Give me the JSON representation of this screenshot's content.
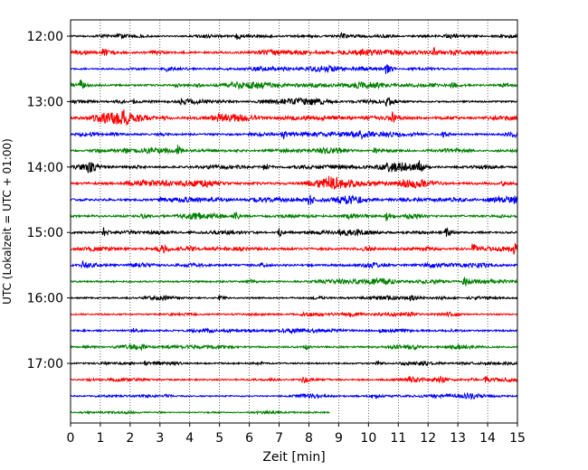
{
  "chart_data": {
    "type": "line",
    "subtype": "helicorder",
    "xlabel": "Zeit  [min]",
    "ylabel": "UTC (Lokalzeit = UTC + 01:00)",
    "xlim": [
      0,
      15
    ],
    "x_ticks": [
      "0",
      "1",
      "2",
      "3",
      "4",
      "5",
      "6",
      "7",
      "8",
      "9",
      "10",
      "11",
      "12",
      "13",
      "14",
      "15"
    ],
    "y_tick_labels": [
      "12:00",
      "13:00",
      "14:00",
      "15:00",
      "16:00",
      "17:00"
    ],
    "y_tick_rows": [
      0,
      4,
      8,
      12,
      16,
      20
    ],
    "grid": "vertical dotted",
    "colors": [
      "#000000",
      "#ff0000",
      "#0000ff",
      "#008000"
    ],
    "rows": [
      {
        "start": "12:00",
        "color": "#000000",
        "amp": 0.35,
        "end_min": 15,
        "events": [
          [
            1.6,
            1.2
          ],
          [
            5.6,
            1.8
          ],
          [
            9.1,
            1.2
          ]
        ]
      },
      {
        "start": "12:15",
        "color": "#ff0000",
        "amp": 0.45,
        "end_min": 15,
        "events": [
          [
            1.1,
            2.8
          ],
          [
            12.2,
            2.2
          ],
          [
            1.5,
            1.2
          ]
        ]
      },
      {
        "start": "12:30",
        "color": "#0000ff",
        "amp": 0.35,
        "end_min": 15,
        "events": [
          [
            10.6,
            3.5
          ],
          [
            3.2,
            1.0
          ]
        ]
      },
      {
        "start": "12:45",
        "color": "#008000",
        "amp": 0.45,
        "end_min": 15,
        "events": [
          [
            0.3,
            3.0
          ],
          [
            12.8,
            2.5
          ],
          [
            3.5,
            1.2
          ],
          [
            6.4,
            1.0
          ]
        ]
      },
      {
        "start": "13:00",
        "color": "#000000",
        "amp": 0.4,
        "end_min": 15,
        "events": [
          [
            10.6,
            3.0
          ],
          [
            2.1,
            1.0
          ],
          [
            3.7,
            1.2
          ]
        ]
      },
      {
        "start": "13:15",
        "color": "#ff0000",
        "amp": 0.55,
        "end_min": 15,
        "events": [
          [
            10.8,
            2.8
          ],
          [
            1.8,
            1.4
          ],
          [
            3.1,
            1.2
          ]
        ]
      },
      {
        "start": "13:30",
        "color": "#0000ff",
        "amp": 0.45,
        "end_min": 15,
        "events": [
          [
            7.1,
            2.6
          ],
          [
            1.4,
            1.2
          ],
          [
            12.5,
            1.4
          ]
        ]
      },
      {
        "start": "13:45",
        "color": "#008000",
        "amp": 0.4,
        "end_min": 15,
        "events": [
          [
            3.6,
            2.8
          ],
          [
            10.2,
            1.8
          ],
          [
            1.8,
            1.2
          ]
        ]
      },
      {
        "start": "14:00",
        "color": "#000000",
        "amp": 0.45,
        "end_min": 15,
        "events": [
          [
            0.6,
            3.0
          ],
          [
            11.7,
            2.8
          ],
          [
            6.5,
            1.6
          ]
        ]
      },
      {
        "start": "14:15",
        "color": "#ff0000",
        "amp": 0.55,
        "end_min": 15,
        "events": [
          [
            8.7,
            2.8
          ],
          [
            1.9,
            1.4
          ],
          [
            3.2,
            1.2
          ],
          [
            14.5,
            1.4
          ]
        ]
      },
      {
        "start": "14:30",
        "color": "#0000ff",
        "amp": 0.5,
        "end_min": 15,
        "events": [
          [
            8.0,
            2.6
          ],
          [
            14.9,
            1.6
          ],
          [
            3.0,
            1.2
          ]
        ]
      },
      {
        "start": "14:45",
        "color": "#008000",
        "amp": 0.5,
        "end_min": 15,
        "events": [
          [
            5.5,
            2.8
          ],
          [
            10.6,
            2.4
          ],
          [
            2.4,
            1.2
          ]
        ]
      },
      {
        "start": "15:00",
        "color": "#000000",
        "amp": 0.45,
        "end_min": 15,
        "events": [
          [
            1.1,
            3.0
          ],
          [
            7.0,
            2.6
          ],
          [
            12.6,
            3.2
          ],
          [
            9.0,
            1.2
          ]
        ]
      },
      {
        "start": "15:15",
        "color": "#ff0000",
        "amp": 0.55,
        "end_min": 15,
        "events": [
          [
            3.1,
            2.4
          ],
          [
            13.5,
            3.2
          ],
          [
            14.9,
            2.8
          ]
        ]
      },
      {
        "start": "15:30",
        "color": "#0000ff",
        "amp": 0.5,
        "end_min": 15,
        "events": [
          [
            0.4,
            2.4
          ],
          [
            6.4,
            1.2
          ]
        ]
      },
      {
        "start": "15:45",
        "color": "#008000",
        "amp": 0.4,
        "end_min": 15,
        "events": [
          [
            13.2,
            3.2
          ],
          [
            6.0,
            1.0
          ]
        ]
      },
      {
        "start": "16:00",
        "color": "#000000",
        "amp": 0.35,
        "end_min": 15,
        "events": [
          [
            5.0,
            1.2
          ],
          [
            11.4,
            1.0
          ]
        ]
      },
      {
        "start": "16:15",
        "color": "#ff0000",
        "amp": 0.35,
        "end_min": 15,
        "events": [
          [
            9.4,
            1.0
          ]
        ]
      },
      {
        "start": "16:30",
        "color": "#0000ff",
        "amp": 0.4,
        "end_min": 15,
        "events": [
          [
            2.1,
            1.2
          ],
          [
            10.4,
            1.2
          ]
        ]
      },
      {
        "start": "16:45",
        "color": "#008000",
        "amp": 0.4,
        "end_min": 15,
        "events": [
          [
            7.9,
            1.2
          ],
          [
            3.1,
            1.0
          ]
        ]
      },
      {
        "start": "17:00",
        "color": "#000000",
        "amp": 0.35,
        "end_min": 15,
        "events": [
          [
            2.5,
            1.0
          ],
          [
            10.3,
            1.0
          ]
        ]
      },
      {
        "start": "17:15",
        "color": "#ff0000",
        "amp": 0.35,
        "end_min": 15,
        "events": [
          [
            7.8,
            2.0
          ],
          [
            11.4,
            1.6
          ],
          [
            12.4,
            1.4
          ],
          [
            13.9,
            2.0
          ]
        ]
      },
      {
        "start": "17:30",
        "color": "#0000ff",
        "amp": 0.3,
        "end_min": 15,
        "events": [
          [
            10.1,
            1.4
          ],
          [
            3.2,
            1.0
          ]
        ]
      },
      {
        "start": "17:45",
        "color": "#008000",
        "amp": 0.2,
        "end_min": 8.7,
        "events": []
      }
    ]
  }
}
